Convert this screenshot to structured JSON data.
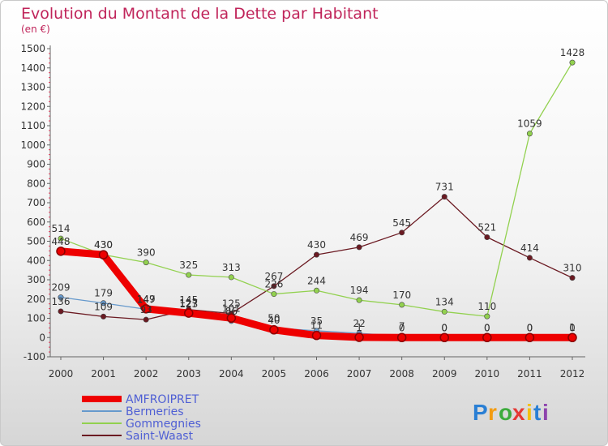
{
  "chart_data": {
    "type": "line",
    "title": "Evolution du Montant de la Dette par Habitant",
    "subtitle": "(en €)",
    "x": [
      "2000",
      "2001",
      "2002",
      "2003",
      "2004",
      "2005",
      "2006",
      "2007",
      "2008",
      "2009",
      "2010",
      "2011",
      "2012"
    ],
    "ylim": [
      -100,
      1500
    ],
    "yticks": [
      -100,
      0,
      100,
      200,
      300,
      400,
      500,
      600,
      700,
      800,
      900,
      1000,
      1100,
      1200,
      1300,
      1400,
      1500
    ],
    "grid": false,
    "legend_position": "bottom-left",
    "series": [
      {
        "name": "Saint-Waast",
        "color": "#6b1a22",
        "values": [
          136,
          109,
          93,
          145,
          125,
          267,
          430,
          469,
          545,
          731,
          521,
          414,
          310
        ]
      },
      {
        "name": "Gommegnies",
        "color": "#92d14f",
        "values": [
          514,
          430,
          390,
          325,
          313,
          226,
          244,
          194,
          170,
          134,
          110,
          1059,
          1428
        ]
      },
      {
        "name": "Bermeries",
        "color": "#6699cc",
        "values": [
          209,
          179,
          147,
          123,
          86,
          50,
          35,
          22,
          7,
          0,
          0,
          0,
          1
        ]
      },
      {
        "name": "AMFROIPRET",
        "color": "#ee0000",
        "values": [
          448,
          430,
          149,
          127,
          101,
          40,
          11,
          1,
          0,
          0,
          0,
          0,
          0
        ]
      }
    ],
    "label_values": {
      "AMFROIPRET": [
        "448",
        "430",
        "149",
        "127",
        "101",
        "40",
        "11",
        "1",
        "0",
        "0",
        "0",
        "0",
        "0"
      ],
      "Bermeries": [
        "209",
        "179",
        "147",
        "123",
        "86",
        "50",
        "35",
        "22",
        "7",
        "0",
        "0",
        "0",
        "1"
      ],
      "Gommegnies": [
        "514",
        "430",
        "390",
        "325",
        "313",
        "226",
        "244",
        "194",
        "170",
        "134",
        "110",
        "1059",
        "1428"
      ],
      "Saint-Waast": [
        "136",
        "109",
        "93",
        "145",
        "125",
        "267",
        "430",
        "469",
        "545",
        "731",
        "521",
        "414",
        "310"
      ]
    }
  },
  "legend": {
    "items": [
      {
        "label": "AMFROIPRET",
        "color": "#ee0000"
      },
      {
        "label": "Bermeries",
        "color": "#6699cc"
      },
      {
        "label": "Gommegnies",
        "color": "#92d14f"
      },
      {
        "label": "Saint-Waast",
        "color": "#6b1a22"
      }
    ]
  },
  "logo": {
    "text": "Proxiti",
    "letters": [
      "P",
      "r",
      "o",
      "x",
      "i",
      "t",
      "i"
    ],
    "colors": [
      "#2a7fd4",
      "#f39c12",
      "#3cab3c",
      "#e53935",
      "#f3c012",
      "#2a7fd4",
      "#8e44ad"
    ]
  }
}
